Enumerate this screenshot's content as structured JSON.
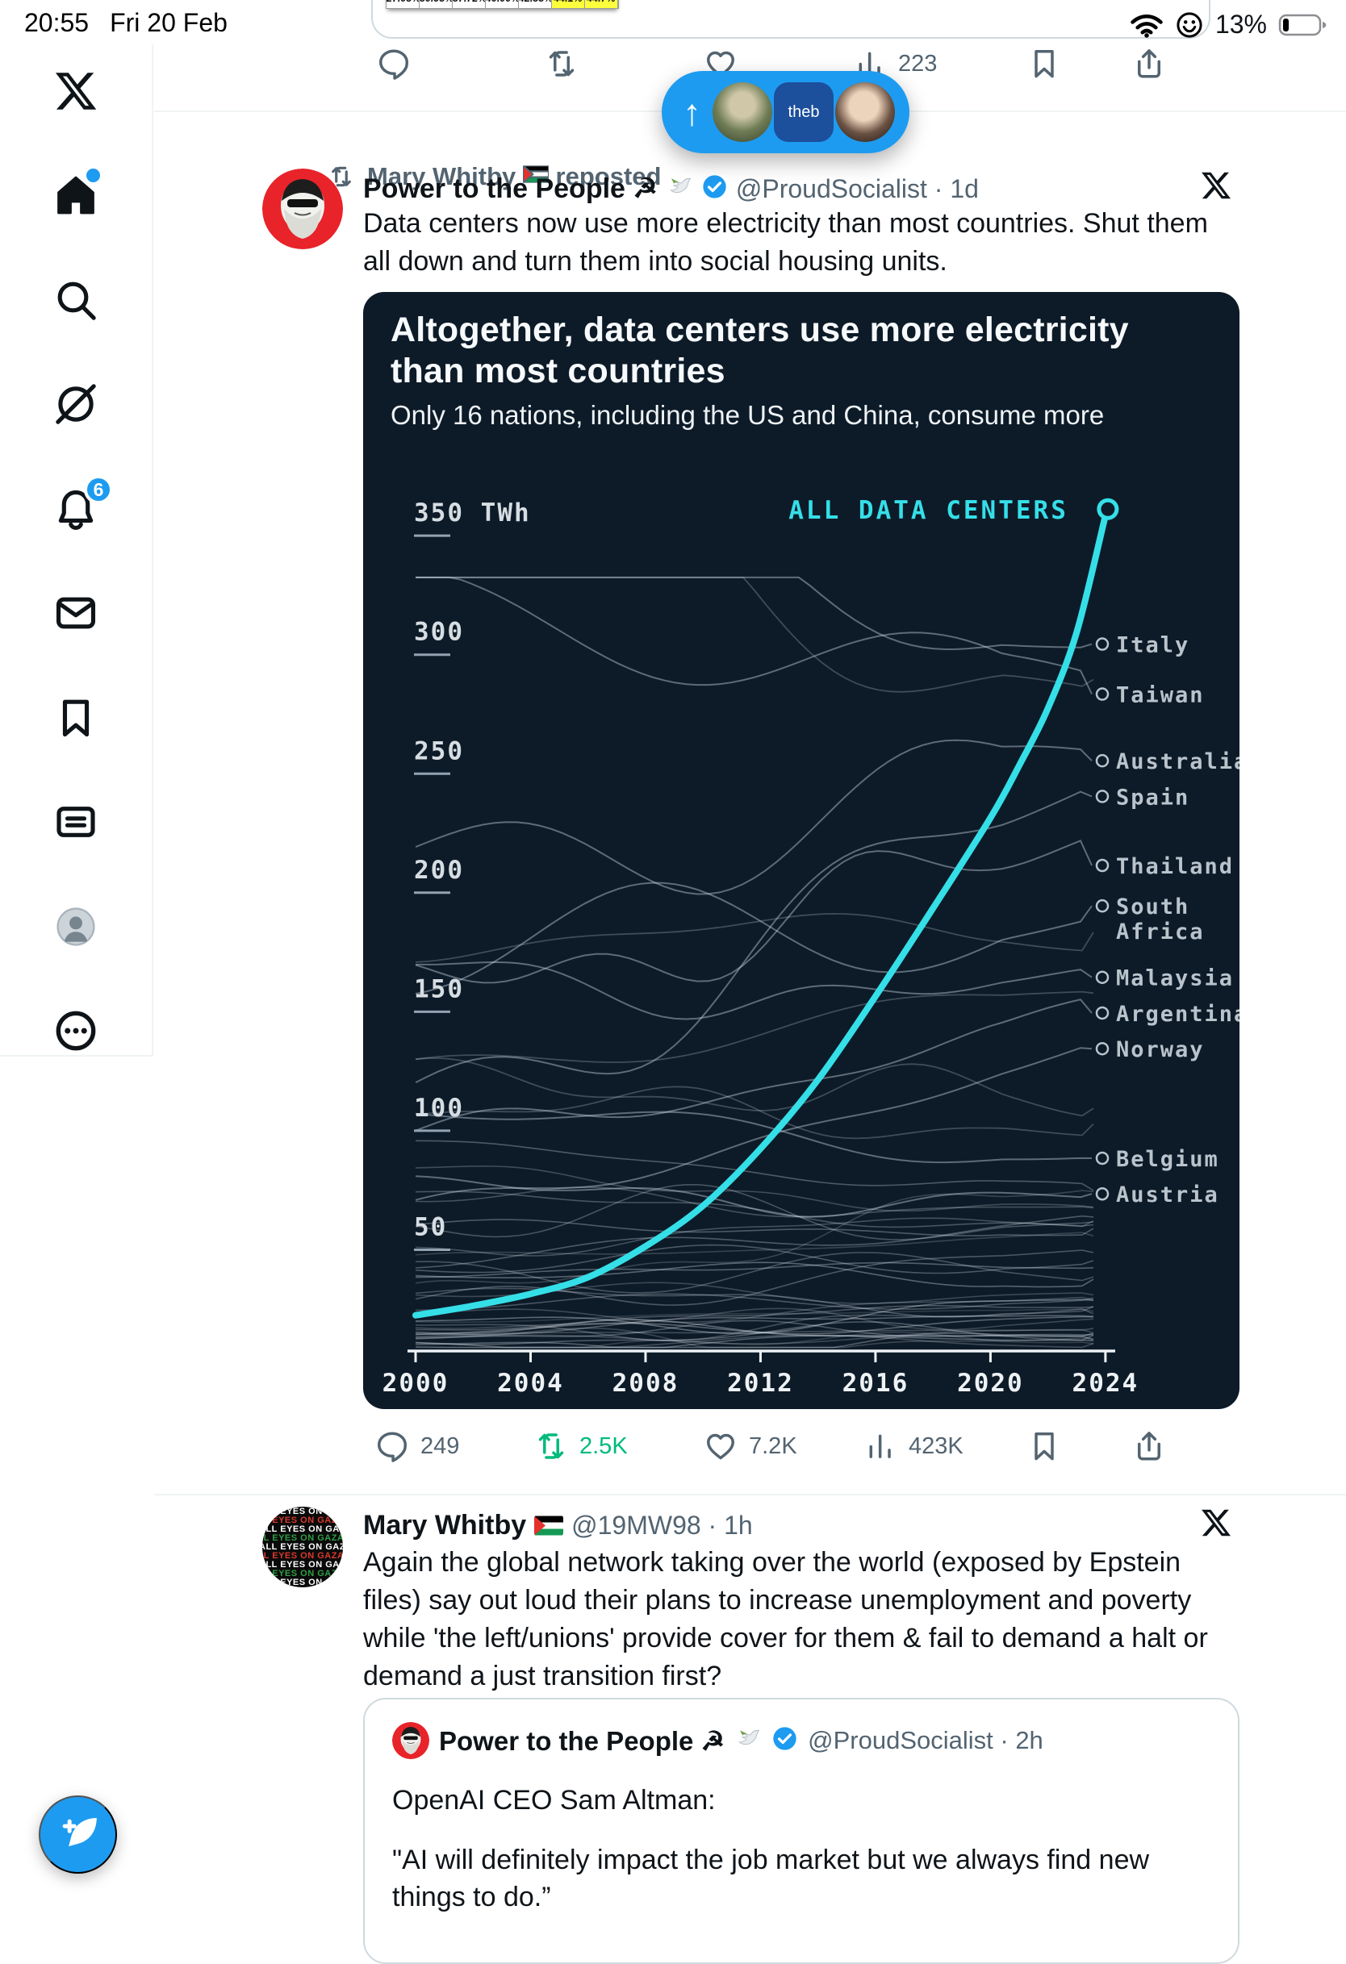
{
  "colors": {
    "accent": "#1d9bf0",
    "green": "#00ba7c",
    "chart_bg": "#0d1b28",
    "gray": "#536471"
  },
  "status_bar": {
    "time": "20:55",
    "date": "Fri 20 Feb",
    "battery_percent": "13%"
  },
  "sidebar": {
    "notifications_badge": "6"
  },
  "scroll_pill": {
    "badge_text": "theb"
  },
  "top_tweet": {
    "table_values": [
      "27.03%",
      "30.93%",
      "37.72%",
      "40.00%",
      "42.33%",
      "44.1%",
      "44.7%"
    ],
    "views": "223"
  },
  "repost": {
    "user": "Mary Whitby",
    "action": "reposted"
  },
  "tweet1": {
    "name": "Power to the People ☭",
    "meta": "@ProudSocialist · 1d",
    "text": "Data centers now use more electricity than most countries. Shut them all down and turn them into social housing units.",
    "stats": {
      "replies": "249",
      "reposts": "2.5K",
      "likes": "7.2K",
      "views": "423K"
    }
  },
  "chart_data": {
    "type": "line",
    "title": "Altogether, data centers use more electricity than most countries",
    "subtitle": "Only 16 nations, including the US and China, consume more",
    "unit": "TWh",
    "yticks": [
      350,
      300,
      250,
      200,
      150,
      100,
      50
    ],
    "xticks": [
      2000,
      2004,
      2008,
      2012,
      2016,
      2020,
      2024
    ],
    "ylim": [
      0,
      370
    ],
    "xlim": [
      2000,
      2025
    ],
    "grid": false,
    "legend_position": "inline-labels",
    "main_series": {
      "name": "ALL DATA CENTERS",
      "color": "#35dfe8",
      "x": [
        2000,
        2002,
        2004,
        2006,
        2008,
        2010,
        2012,
        2014,
        2016,
        2018,
        2020,
        2021,
        2022,
        2023,
        2024
      ],
      "y": [
        15,
        19,
        24,
        31,
        44,
        61,
        85,
        114,
        149,
        186,
        224,
        246,
        270,
        302,
        351
      ]
    },
    "country_labels": [
      {
        "name": "Italy",
        "value": 297
      },
      {
        "name": "Taiwan",
        "value": 276
      },
      {
        "name": "Australia",
        "value": 248
      },
      {
        "name": "Spain",
        "value": 233
      },
      {
        "name": "Thailand",
        "value": 204
      },
      {
        "name": "South Africa",
        "value": 187,
        "lines": [
          "South",
          "Africa"
        ]
      },
      {
        "name": "Malaysia",
        "value": 157
      },
      {
        "name": "Argentina",
        "value": 142
      },
      {
        "name": "Norway",
        "value": 127
      },
      {
        "name": "Belgium",
        "value": 81
      },
      {
        "name": "Austria",
        "value": 66
      }
    ]
  },
  "tweet2": {
    "name": "Mary Whitby",
    "meta": "@19MW98 · 1h",
    "avatar_text": "ALL EYES ON GAZA CITY",
    "text": "Again the global network taking over the world (exposed by Epstein files) say out loud their plans to increase unemployment and poverty while 'the left/unions' provide cover for them & fail to demand a halt or demand a just transition first?"
  },
  "quote": {
    "name": "Power to the People ☭",
    "meta": "@ProudSocialist · 2h",
    "line1": "OpenAI CEO Sam Altman:",
    "line2": "\"AI will definitely impact the job market but we always find new things to do.”"
  }
}
